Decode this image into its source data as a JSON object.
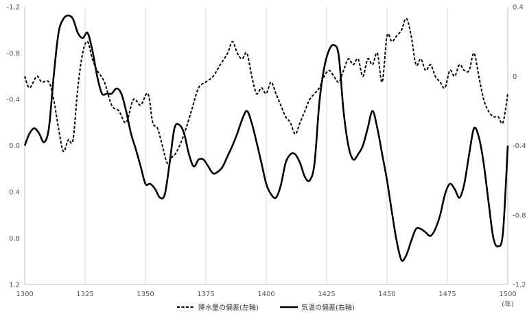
{
  "chart_data": {
    "type": "line",
    "x_unit_label": "(年)",
    "x_ticks": [
      1300,
      1325,
      1350,
      1375,
      1400,
      1425,
      1450,
      1475,
      1500
    ],
    "x_range": [
      1300,
      1500
    ],
    "y_left": {
      "range": [
        -1.2,
        1.2
      ],
      "inverted": true,
      "ticks": [
        -1.2,
        -0.8,
        -0.4,
        0.0,
        0.4,
        0.8,
        1.2
      ],
      "tick_labels": [
        "-1.2",
        "-0.8",
        "-0.4",
        "0.0",
        "0.4",
        "0.8",
        "1.2"
      ]
    },
    "y_right": {
      "range": [
        -1.2,
        0.4
      ],
      "ticks": [
        0.4,
        0,
        -0.4,
        -0.8,
        -1.2
      ],
      "tick_labels": [
        "0.4",
        "0",
        "-0.4",
        "-0.8",
        "-1.2"
      ]
    },
    "grid": "vertical",
    "legend_position": "bottom",
    "series": [
      {
        "name": "降水量の偏差(左軸)",
        "axis": "left",
        "style": "dashed",
        "color": "#000000",
        "x": [
          1300,
          1302,
          1305,
          1307,
          1310,
          1312,
          1314,
          1316,
          1318,
          1320,
          1322,
          1324,
          1326,
          1328,
          1330,
          1333,
          1336,
          1339,
          1342,
          1345,
          1348,
          1351,
          1353,
          1355,
          1357,
          1359,
          1361,
          1363,
          1366,
          1369,
          1372,
          1375,
          1378,
          1381,
          1384,
          1386,
          1388,
          1390,
          1392,
          1394,
          1396,
          1398,
          1400,
          1402,
          1404,
          1406,
          1408,
          1410,
          1412,
          1414,
          1416,
          1418,
          1420,
          1422,
          1424,
          1426,
          1428,
          1430,
          1432,
          1434,
          1436,
          1438,
          1440,
          1442,
          1444,
          1446,
          1448,
          1450,
          1452,
          1454,
          1456,
          1458,
          1460,
          1462,
          1464,
          1466,
          1468,
          1470,
          1472,
          1474,
          1476,
          1478,
          1480,
          1482,
          1484,
          1486,
          1488,
          1490,
          1492,
          1494,
          1496,
          1498,
          1500
        ],
        "y": [
          -0.6,
          -0.5,
          -0.6,
          -0.55,
          -0.55,
          -0.4,
          -0.15,
          0.05,
          -0.05,
          -0.05,
          -0.5,
          -0.8,
          -0.9,
          -0.75,
          -0.65,
          -0.55,
          -0.35,
          -0.3,
          -0.2,
          -0.4,
          -0.35,
          -0.45,
          -0.2,
          -0.15,
          0.0,
          0.15,
          0.1,
          0.05,
          -0.1,
          -0.3,
          -0.5,
          -0.55,
          -0.6,
          -0.7,
          -0.8,
          -0.9,
          -0.8,
          -0.75,
          -0.8,
          -0.6,
          -0.45,
          -0.5,
          -0.45,
          -0.55,
          -0.45,
          -0.35,
          -0.25,
          -0.2,
          -0.1,
          -0.2,
          -0.3,
          -0.4,
          -0.45,
          -0.5,
          -0.6,
          -0.65,
          -0.6,
          -0.55,
          -0.65,
          -0.75,
          -0.7,
          -0.75,
          -0.6,
          -0.75,
          -0.7,
          -0.8,
          -0.55,
          -0.95,
          -0.9,
          -0.95,
          -1.0,
          -1.1,
          -0.95,
          -0.7,
          -0.75,
          -0.65,
          -0.7,
          -0.6,
          -0.55,
          -0.5,
          -0.65,
          -0.6,
          -0.7,
          -0.65,
          -0.65,
          -0.8,
          -0.6,
          -0.4,
          -0.3,
          -0.25,
          -0.25,
          -0.2,
          -0.45
        ]
      },
      {
        "name": "気温の偏差(右軸)",
        "axis": "right",
        "style": "solid",
        "color": "#000000",
        "x": [
          1300,
          1302,
          1304,
          1306,
          1308,
          1310,
          1312,
          1314,
          1316,
          1318,
          1320,
          1322,
          1324,
          1326,
          1328,
          1330,
          1332,
          1334,
          1336,
          1338,
          1340,
          1342,
          1344,
          1346,
          1348,
          1350,
          1352,
          1354,
          1356,
          1358,
          1360,
          1362,
          1364,
          1366,
          1368,
          1370,
          1372,
          1374,
          1376,
          1378,
          1380,
          1382,
          1384,
          1386,
          1388,
          1390,
          1392,
          1394,
          1396,
          1398,
          1400,
          1402,
          1404,
          1406,
          1408,
          1410,
          1412,
          1414,
          1416,
          1418,
          1420,
          1422,
          1424,
          1426,
          1428,
          1430,
          1432,
          1434,
          1436,
          1438,
          1440,
          1442,
          1444,
          1446,
          1448,
          1450,
          1452,
          1454,
          1456,
          1458,
          1460,
          1462,
          1464,
          1466,
          1468,
          1470,
          1472,
          1474,
          1476,
          1478,
          1480,
          1482,
          1484,
          1486,
          1488,
          1490,
          1492,
          1494,
          1496,
          1498,
          1500
        ],
        "y": [
          -0.4,
          -0.33,
          -0.3,
          -0.33,
          -0.38,
          -0.3,
          0.0,
          0.25,
          0.33,
          0.35,
          0.33,
          0.25,
          0.22,
          0.25,
          0.15,
          0.0,
          -0.1,
          -0.1,
          -0.1,
          -0.07,
          -0.1,
          -0.2,
          -0.33,
          -0.42,
          -0.52,
          -0.62,
          -0.62,
          -0.65,
          -0.7,
          -0.68,
          -0.5,
          -0.3,
          -0.28,
          -0.33,
          -0.45,
          -0.52,
          -0.48,
          -0.48,
          -0.52,
          -0.56,
          -0.55,
          -0.52,
          -0.46,
          -0.4,
          -0.33,
          -0.25,
          -0.2,
          -0.27,
          -0.38,
          -0.5,
          -0.62,
          -0.68,
          -0.7,
          -0.63,
          -0.5,
          -0.45,
          -0.45,
          -0.5,
          -0.58,
          -0.6,
          -0.5,
          -0.15,
          0.05,
          0.15,
          0.18,
          0.12,
          -0.2,
          -0.4,
          -0.48,
          -0.45,
          -0.4,
          -0.3,
          -0.2,
          -0.3,
          -0.45,
          -0.6,
          -0.78,
          -0.95,
          -1.06,
          -1.03,
          -0.95,
          -0.88,
          -0.88,
          -0.9,
          -0.92,
          -0.88,
          -0.8,
          -0.68,
          -0.62,
          -0.65,
          -0.7,
          -0.62,
          -0.45,
          -0.3,
          -0.35,
          -0.5,
          -0.72,
          -0.93,
          -0.98,
          -0.9,
          -0.4
        ]
      }
    ]
  }
}
